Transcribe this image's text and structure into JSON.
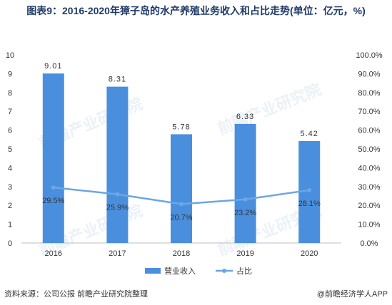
{
  "title": "图表9：2016-2020年獐子岛的水产养殖业务收入和占比走势(单位：亿元，%)",
  "source": "资料来源：公司公报  前瞻产业研究院整理",
  "brand": "@前瞻经济学人APP",
  "watermark": "前瞻产业研究院",
  "colors": {
    "bar": "#4a8fde",
    "line": "#6ba6e6",
    "title": "#1f3a68"
  },
  "chart_data": {
    "type": "bar",
    "categories": [
      "2016",
      "2017",
      "2018",
      "2019",
      "2020"
    ],
    "series": [
      {
        "name": "营业收入",
        "type": "bar",
        "axis": "left",
        "values": [
          9.01,
          8.31,
          5.78,
          6.33,
          5.42
        ],
        "labels": [
          "9.01",
          "8.31",
          "5.78",
          "6.33",
          "5.42"
        ]
      },
      {
        "name": "占比",
        "type": "line",
        "axis": "right",
        "values": [
          29.5,
          25.9,
          20.7,
          23.2,
          28.1
        ],
        "labels": [
          "29.5%",
          "25.9%",
          "20.7%",
          "23.2%",
          "28.1%"
        ]
      }
    ],
    "y_left": {
      "ylim": [
        0,
        10
      ],
      "ticks": [
        "0",
        "1",
        "2",
        "3",
        "4",
        "5",
        "6",
        "7",
        "8",
        "9",
        "10"
      ]
    },
    "y_right": {
      "ylim": [
        0,
        100
      ],
      "ticks": [
        "0.0%",
        "10.0%",
        "20.0%",
        "30.0%",
        "40.0%",
        "50.0%",
        "60.0%",
        "70.0%",
        "80.0%",
        "90.0%",
        "100.0%"
      ]
    },
    "legend": {
      "position": "bottom",
      "items": [
        "营业收入",
        "占比"
      ]
    },
    "grid": false
  }
}
